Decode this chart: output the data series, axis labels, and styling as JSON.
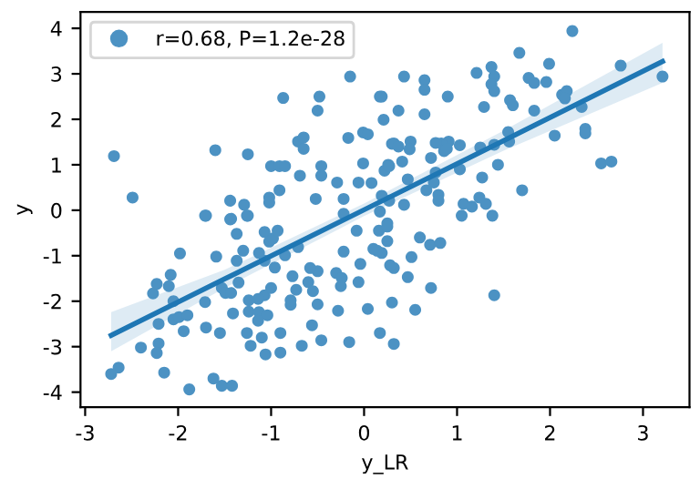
{
  "chart_data": {
    "type": "scatter",
    "xlabel": "y_LR",
    "ylabel": "y",
    "xlim": [
      -3.05,
      3.5
    ],
    "ylim": [
      -4.33,
      4.36
    ],
    "xticks": [
      -3,
      -2,
      -1,
      0,
      1,
      2,
      3
    ],
    "yticks": [
      -4,
      -3,
      -2,
      -1,
      0,
      1,
      2,
      3,
      4
    ],
    "grid": false,
    "legend": "top left",
    "series": [
      {
        "name": "r=0.68, P=1.2e-28",
        "marker": "circle",
        "color": "#4c92c3",
        "x": [
          -2.69,
          -2.49,
          -1.6,
          -1.25,
          -1.7,
          -1.44,
          -1.29,
          -1.25,
          -1.44,
          -1.02,
          -1.02,
          -0.91,
          -1.0,
          -0.91,
          -0.85,
          -0.87,
          -0.71,
          -0.65,
          -0.65,
          -0.69,
          -0.52,
          -0.5,
          -0.48,
          -0.46,
          -0.46,
          -0.29,
          -0.17,
          -0.15,
          -0.06,
          -0.01,
          0.04,
          -0.01,
          0.08,
          0.17,
          0.21,
          0.19,
          0.17,
          -0.22,
          -0.22,
          0.26,
          0.27,
          0.3,
          2.24,
          1.67,
          2.76,
          3.21,
          0.43,
          0.65,
          0.65,
          0.65,
          0.19,
          0.37,
          0.9,
          1.21,
          1.37,
          1.4,
          1.37,
          1.4,
          1.77,
          1.83,
          1.96,
          1.99,
          1.29,
          1.57,
          1.6,
          1.83,
          2.13,
          2.18,
          2.16,
          2.34,
          2.38,
          2.38,
          2.05,
          2.55,
          2.66,
          1.55,
          1.56,
          1.4,
          1.25,
          1.44,
          1.27,
          1.7,
          1.03,
          0.91,
          0.83,
          0.77,
          0.86,
          0.89,
          0.72,
          1.03,
          0.77,
          0.32,
          0.37,
          0.5,
          0.49,
          0.41,
          0.22,
          0.27,
          0.47,
          0.67,
          0.75,
          0.8,
          0.8,
          0.43,
          1.07,
          1.16,
          1.24,
          1.31,
          1.05,
          1.38,
          0.25,
          0.16,
          0.25,
          0.25,
          0.19,
          0.14,
          0.6,
          0.71,
          0.82,
          0.51,
          0.32,
          0.47,
          0.72,
          1.4,
          0.3,
          0.55,
          0.17,
          0.32,
          -1.71,
          -1.43,
          -1.26,
          -1.37,
          -1.07,
          -1.02,
          -0.98,
          -0.93,
          -1.98,
          -1.59,
          -1.3,
          -1.13,
          -1.37,
          -1.07,
          -0.96,
          -0.85,
          -0.71,
          -2.08,
          -2.1,
          -2.23,
          -2.27,
          -2.05,
          -2.05,
          -1.99,
          -1.9,
          -2.21,
          -2.21,
          -2.23,
          -1.94,
          -2.4,
          -2.64,
          -2.72,
          -2.15,
          -1.88,
          -1.62,
          -1.53,
          -1.42,
          -1.71,
          -1.53,
          -1.49,
          -1.43,
          -1.35,
          -1.7,
          -1.55,
          -1.41,
          -1.24,
          -1.13,
          -1.04,
          -1.14,
          -1.07,
          -1.14,
          -1.0,
          -1.24,
          -1.26,
          -1.1,
          -1.22,
          -1.06,
          -0.9,
          -0.9,
          -0.79,
          -0.79,
          -0.77,
          -0.73,
          -0.6,
          -0.55,
          -0.5,
          -0.58,
          -0.67,
          -0.56,
          -0.46,
          -0.5,
          -0.3,
          -0.24,
          -0.25,
          -0.28,
          -0.16,
          -0.06,
          -0.04,
          0.04,
          -0.22,
          -0.08,
          0.1,
          0.28
        ],
        "values": [
          1.19,
          0.28,
          1.32,
          1.23,
          -0.12,
          0.21,
          0.12,
          -0.12,
          -0.2,
          0.28,
          0.17,
          0.44,
          0.97,
          0.97,
          0.97,
          2.47,
          1.51,
          1.6,
          1.35,
          0.76,
          0.25,
          2.19,
          2.5,
          0.97,
          0.76,
          0.61,
          1.59,
          2.94,
          0.61,
          1.71,
          1.67,
          1.03,
          0.6,
          2.5,
          1.99,
          0.32,
          -0.03,
          0.25,
          -0.08,
          1.0,
          0.21,
          1.46,
          3.94,
          3.46,
          3.18,
          2.94,
          2.94,
          2.86,
          2.65,
          2.11,
          2.5,
          2.19,
          2.5,
          3.02,
          3.15,
          2.94,
          2.77,
          2.62,
          2.91,
          2.8,
          2.82,
          3.22,
          2.27,
          2.42,
          2.31,
          2.19,
          2.54,
          2.62,
          2.46,
          2.27,
          1.79,
          1.69,
          1.64,
          1.03,
          1.07,
          1.72,
          1.51,
          1.44,
          1.38,
          1.0,
          0.72,
          0.44,
          1.43,
          1.51,
          1.47,
          1.48,
          1.3,
          1.35,
          1.15,
          0.9,
          0.83,
          1.47,
          1.4,
          1.51,
          1.34,
          1.07,
          0.87,
          0.97,
          0.68,
          0.44,
          0.61,
          0.34,
          0.21,
          0.12,
          0.14,
          0.08,
          0.28,
          0.14,
          -0.12,
          -0.12,
          -0.29,
          -0.45,
          -0.36,
          -0.68,
          -0.94,
          -0.89,
          -0.6,
          -0.76,
          -0.72,
          -1.03,
          -1.27,
          -1.47,
          -1.71,
          -1.87,
          -2.03,
          -2.19,
          -2.7,
          -2.94,
          -0.12,
          -0.19,
          -0.12,
          -0.52,
          -0.48,
          -0.69,
          -0.62,
          -0.45,
          -0.95,
          -1.02,
          -0.89,
          -0.94,
          -1.11,
          -1.11,
          -1.26,
          -0.99,
          -0.81,
          -1.42,
          -1.67,
          -1.62,
          -1.83,
          -2.0,
          -2.4,
          -2.35,
          -2.31,
          -2.5,
          -2.93,
          -3.14,
          -2.66,
          -3.02,
          -3.46,
          -3.6,
          -3.57,
          -3.94,
          -3.7,
          -3.86,
          -3.86,
          -2.02,
          -1.71,
          -1.82,
          -1.82,
          -1.59,
          -2.58,
          -2.7,
          -2.27,
          -2.23,
          -2.24,
          -2.31,
          -2.43,
          -1.87,
          -1.95,
          -1.71,
          -1.98,
          -2.7,
          -2.8,
          -2.98,
          -3.17,
          -3.13,
          -2.7,
          -2.08,
          -1.98,
          -1.45,
          -1.75,
          -1.58,
          -1.78,
          -1.34,
          -1.27,
          -2.98,
          -2.53,
          -2.86,
          -2.07,
          -1.38,
          -1.49,
          -1.67,
          -2.21,
          -2.9,
          -1.58,
          -1.18,
          -2.17,
          -0.91,
          -0.45,
          -0.85,
          -1.21
        ]
      },
      {
        "type": "line",
        "marker": "none",
        "color": "#1f77b4",
        "x": [
          -2.72,
          -1.5,
          0,
          1.5,
          3.21
        ],
        "values": [
          -2.75,
          -1.51,
          0.01,
          1.53,
          3.27
        ],
        "lower": [
          -3.1,
          -1.71,
          -0.13,
          1.31,
          2.8
        ],
        "upper": [
          -2.24,
          -1.31,
          0.15,
          1.75,
          3.68
        ]
      }
    ]
  }
}
